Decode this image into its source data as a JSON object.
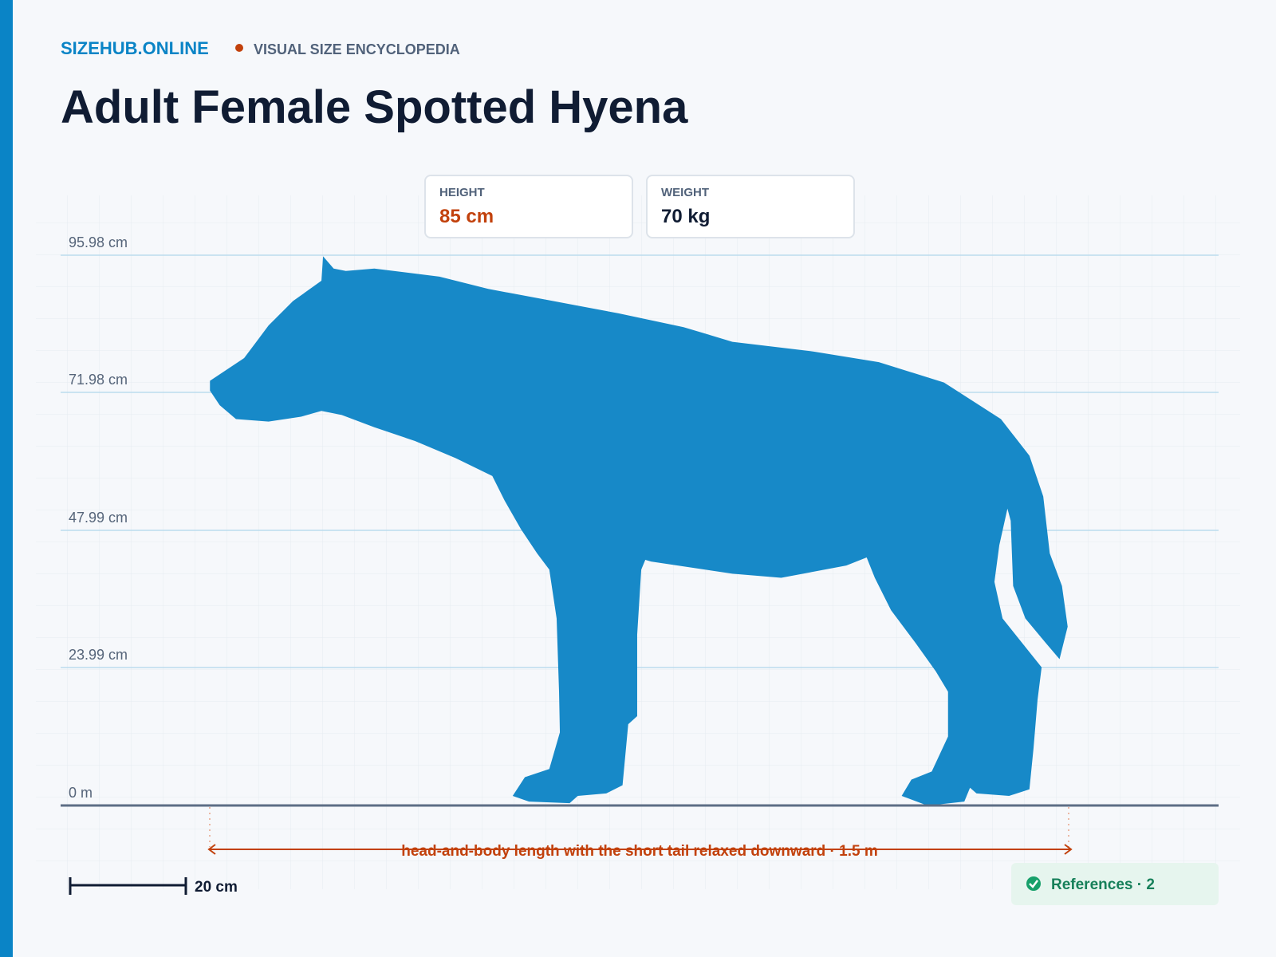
{
  "header": {
    "site": "SIZEHUB.ONLINE",
    "tagline": "VISUAL SIZE ENCYCLOPEDIA"
  },
  "title": "Adult Female Spotted Hyena",
  "stats": [
    {
      "label": "HEIGHT",
      "value": "85 cm"
    },
    {
      "label": "WEIGHT",
      "value": "70 kg"
    }
  ],
  "ruler": {
    "labels": [
      "95.98 cm",
      "71.98 cm",
      "47.99 cm",
      "23.99 cm",
      "0 m"
    ]
  },
  "length_note": "head-and-body length with the short tail relaxed downward · 1.5 m",
  "scale_bar": "20 cm",
  "references": "References · 2"
}
